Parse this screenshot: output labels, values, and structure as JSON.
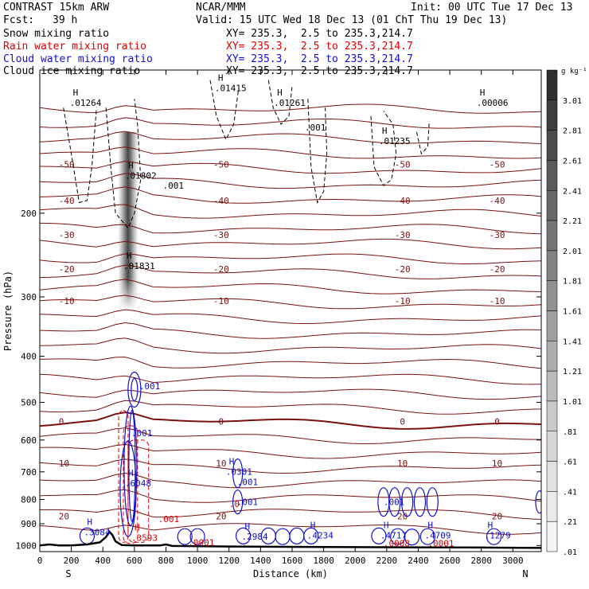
{
  "header": {
    "model": "CONTRAST 15km ARW",
    "center": "NCAR/MMM",
    "init": "Init: 00 UTC Tue 17 Dec 13",
    "fcst_label": "Fcst:",
    "fcst_value": "39 h",
    "valid": "Valid: 15 UTC Wed 18 Dec 13 (01 ChT Thu 19 Dec 13)",
    "fields": [
      {
        "name": "Snow mixing ratio",
        "xy": "XY= 235.3,  2.5 to 235.3,214.7",
        "color": "#000000"
      },
      {
        "name": "Rain water mixing ratio",
        "xy": "XY= 235.3,  2.5 to 235.3,214.7",
        "color": "#e00000"
      },
      {
        "name": "Cloud water mixing ratio",
        "xy": "XY= 235.3,  2.5 to 235.3,214.7",
        "color": "#1010d0"
      },
      {
        "name": "Cloud ice mixing ratio",
        "xy": "XY= 235.3,  2.5 to 235.3,214.7",
        "color": "#000000"
      }
    ]
  },
  "chart_data": {
    "type": "cross-section",
    "xlabel": "Distance (km)",
    "ylabel": "Pressure (hPa)",
    "xlim": [
      0,
      3180
    ],
    "ylim": [
      1030,
      100
    ],
    "y_log": true,
    "x_ticks": [
      0,
      200,
      400,
      600,
      800,
      1000,
      1200,
      1400,
      1600,
      1800,
      2000,
      2200,
      2400,
      2600,
      2800,
      3000
    ],
    "y_ticks": [
      200,
      300,
      400,
      500,
      600,
      700,
      800,
      900,
      1000
    ],
    "x_end_labels": {
      "left": "S",
      "right": "N"
    },
    "colorbar": {
      "unit": "g kg⁻¹",
      "labels": [
        "3.01",
        "2.81",
        "2.61",
        "2.41",
        "2.21",
        "2.01",
        "1.81",
        "1.61",
        "1.41",
        "1.21",
        "1.01",
        ".81",
        ".61",
        ".41",
        ".21",
        ".01"
      ],
      "colors": [
        "#2f2f2f",
        "#3d3d3d",
        "#4b4b4b",
        "#595959",
        "#676767",
        "#757575",
        "#838383",
        "#919191",
        "#9f9f9f",
        "#adadad",
        "#bbbbbb",
        "#c9c9c9",
        "#d5d5d5",
        "#e0e0e0",
        "#eaeaea",
        "#f4f4f4"
      ]
    },
    "isotherms": [
      {
        "label": "-50",
        "p": 158
      },
      {
        "label": "-40",
        "p": 188
      },
      {
        "label": "-30",
        "p": 222
      },
      {
        "label": "-20",
        "p": 262
      },
      {
        "label": "-10",
        "p": 306
      },
      {
        "label": "0",
        "p": 548
      },
      {
        "label": "10",
        "p": 672
      },
      {
        "label": "20",
        "p": 868
      }
    ],
    "terrain_surface_hpa": [
      [
        0,
        1000
      ],
      [
        60,
        995
      ],
      [
        120,
        1000
      ],
      [
        200,
        1000
      ],
      [
        300,
        995
      ],
      [
        380,
        985
      ],
      [
        420,
        960
      ],
      [
        440,
        935
      ],
      [
        460,
        950
      ],
      [
        480,
        980
      ],
      [
        520,
        998
      ],
      [
        600,
        1000
      ],
      [
        760,
        1000
      ],
      [
        800,
        995
      ],
      [
        840,
        1002
      ],
      [
        1200,
        1005
      ],
      [
        2000,
        1008
      ],
      [
        2800,
        1010
      ],
      [
        3180,
        1012
      ]
    ],
    "max_labels": [
      {
        "text": ".01264",
        "x": 210,
        "p": 118
      },
      {
        "text": ".01802",
        "x": 560,
        "p": 168
      },
      {
        "text": ".01831",
        "x": 550,
        "p": 260
      },
      {
        "text": ".01415",
        "x": 1130,
        "p": 110
      },
      {
        "text": ".01261",
        "x": 1505,
        "p": 118
      },
      {
        "text": ".01235",
        "x": 2170,
        "p": 142
      },
      {
        "text": ".00006",
        "x": 2790,
        "p": 118
      },
      {
        "text": ".3084",
        "x": 300,
        "p": 945
      },
      {
        "text": ".0301",
        "x": 1200,
        "p": 705
      },
      {
        "text": ".2984",
        "x": 1300,
        "p": 965
      },
      {
        "text": ".4234",
        "x": 1715,
        "p": 960
      },
      {
        "text": ".1279",
        "x": 2840,
        "p": 960
      },
      {
        "text": ".4717",
        "x": 2180,
        "p": 960
      },
      {
        "text": ".4709",
        "x": 2460,
        "p": 960
      },
      {
        "text": ".6048",
        "x": 560,
        "p": 745
      },
      {
        "text": ".3593",
        "x": 600,
        "p": 970
      }
    ],
    "contour_value_labels": [
      {
        "text": ".001",
        "x": 780,
        "p": 175,
        "series": "snow"
      },
      {
        "text": ".001",
        "x": 1680,
        "p": 132,
        "series": "snow"
      },
      {
        "text": ".001",
        "x": 630,
        "p": 462,
        "series": "cloud_water"
      },
      {
        "text": ".001",
        "x": 580,
        "p": 580,
        "series": "cloud_water"
      },
      {
        "text": ".001",
        "x": 1250,
        "p": 735,
        "series": "cloud_water"
      },
      {
        "text": ".001",
        "x": 1250,
        "p": 810,
        "series": "cloud_water"
      },
      {
        "text": ".001",
        "x": 2180,
        "p": 810,
        "series": "cloud_water"
      },
      {
        "text": ".001",
        "x": 750,
        "p": 880,
        "series": "rain"
      },
      {
        "text": ".0",
        "x": 1200,
        "p": 818,
        "series": "rain"
      },
      {
        "text": ".0001",
        "x": 940,
        "p": 985,
        "series": "rain"
      },
      {
        "text": ".0008",
        "x": 2180,
        "p": 990,
        "series": "rain"
      },
      {
        "text": ".0001",
        "x": 2460,
        "p": 990,
        "series": "rain"
      }
    ]
  }
}
